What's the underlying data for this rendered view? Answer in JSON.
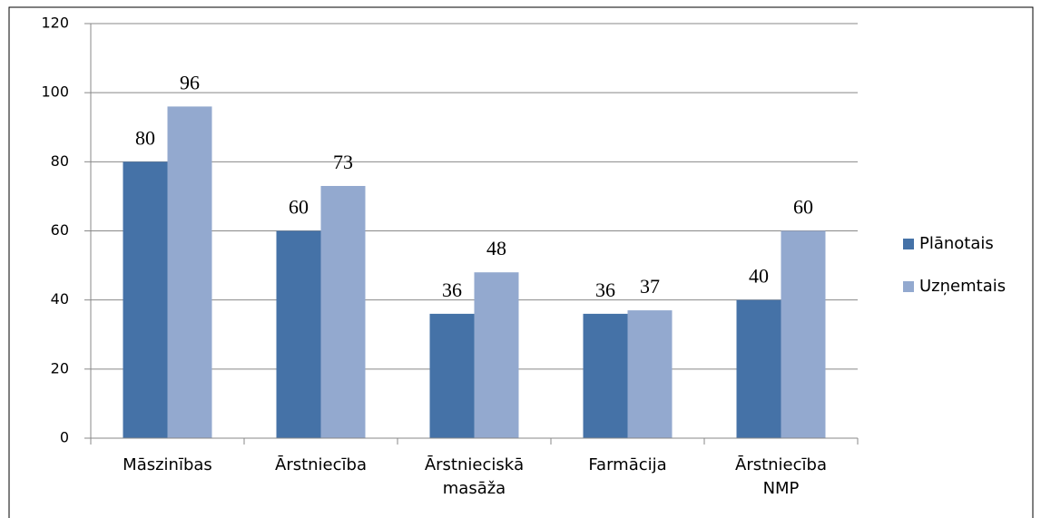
{
  "chart_data": {
    "type": "bar",
    "categories": [
      "Māszinības",
      "Ārstniecība",
      "Ārstnieciskā masāža",
      "Farmācija",
      "Ārstniecība NMP"
    ],
    "series": [
      {
        "name": "Plānotais",
        "color": "#4572a7",
        "values": [
          80,
          60,
          36,
          36,
          40
        ]
      },
      {
        "name": "Uzņemtais",
        "color": "#93a9cf",
        "values": [
          96,
          73,
          48,
          37,
          60
        ]
      }
    ],
    "ylim": [
      0,
      120
    ],
    "yticks": [
      0,
      20,
      40,
      60,
      80,
      100,
      120
    ],
    "grid": true,
    "legend": "right"
  }
}
